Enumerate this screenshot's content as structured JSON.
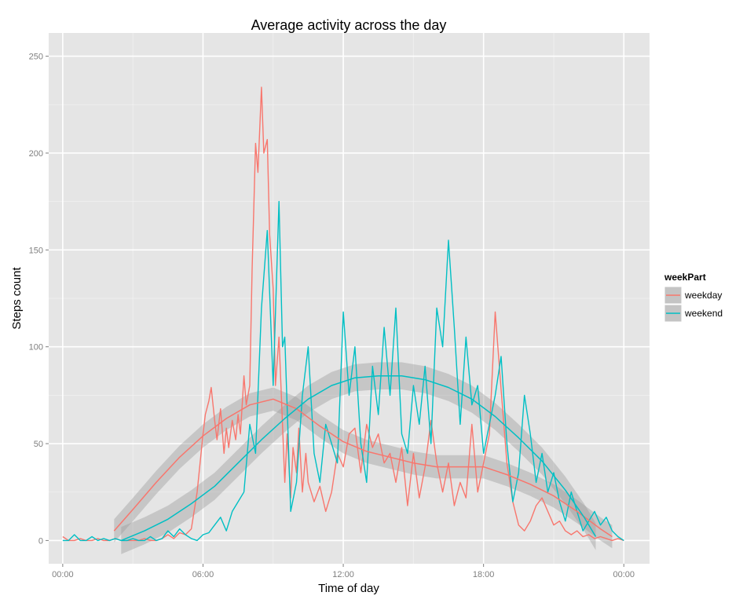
{
  "chart_data": {
    "type": "line",
    "title": "Average activity across the day",
    "xlabel": "Time of day",
    "ylabel": "Steps count",
    "x_unit": "hours",
    "xlim": [
      -0.6,
      25.1
    ],
    "ylim": [
      -12,
      262
    ],
    "x_ticks": [
      {
        "value": 0,
        "label": "00:00"
      },
      {
        "value": 6,
        "label": "06:00"
      },
      {
        "value": 12,
        "label": "12:00"
      },
      {
        "value": 18,
        "label": "18:00"
      },
      {
        "value": 24,
        "label": "00:00"
      }
    ],
    "y_ticks": [
      0,
      50,
      100,
      150,
      200,
      250
    ],
    "grid": true,
    "legend": {
      "title": "weekPart",
      "placement": "right"
    },
    "series": [
      {
        "name": "weekday",
        "color": "#F8766D",
        "raw": [
          [
            0,
            2
          ],
          [
            0.25,
            0
          ],
          [
            0.5,
            0
          ],
          [
            0.75,
            1
          ],
          [
            1,
            0
          ],
          [
            1.25,
            0
          ],
          [
            1.5,
            1
          ],
          [
            1.75,
            0
          ],
          [
            2,
            0
          ],
          [
            2.25,
            1
          ],
          [
            2.5,
            0
          ],
          [
            2.75,
            0
          ],
          [
            3,
            0
          ],
          [
            3.25,
            0
          ],
          [
            3.5,
            1
          ],
          [
            3.75,
            0
          ],
          [
            4,
            0
          ],
          [
            4.25,
            1
          ],
          [
            4.5,
            3
          ],
          [
            4.75,
            1
          ],
          [
            5,
            4
          ],
          [
            5.25,
            3
          ],
          [
            5.5,
            6
          ],
          [
            5.75,
            25
          ],
          [
            6,
            55
          ],
          [
            6.1,
            65
          ],
          [
            6.25,
            72
          ],
          [
            6.35,
            79
          ],
          [
            6.5,
            62
          ],
          [
            6.6,
            52
          ],
          [
            6.75,
            68
          ],
          [
            6.9,
            45
          ],
          [
            7,
            58
          ],
          [
            7.1,
            48
          ],
          [
            7.25,
            62
          ],
          [
            7.4,
            52
          ],
          [
            7.5,
            65
          ],
          [
            7.6,
            55
          ],
          [
            7.75,
            85
          ],
          [
            7.85,
            70
          ],
          [
            8,
            80
          ],
          [
            8.1,
            140
          ],
          [
            8.25,
            205
          ],
          [
            8.35,
            190
          ],
          [
            8.5,
            234
          ],
          [
            8.6,
            200
          ],
          [
            8.75,
            207
          ],
          [
            8.85,
            158
          ],
          [
            9,
            130
          ],
          [
            9.1,
            80
          ],
          [
            9.25,
            105
          ],
          [
            9.35,
            75
          ],
          [
            9.5,
            30
          ],
          [
            9.6,
            55
          ],
          [
            9.75,
            22
          ],
          [
            9.85,
            48
          ],
          [
            10,
            35
          ],
          [
            10.1,
            58
          ],
          [
            10.25,
            25
          ],
          [
            10.4,
            45
          ],
          [
            10.5,
            30
          ],
          [
            10.75,
            20
          ],
          [
            11,
            28
          ],
          [
            11.25,
            15
          ],
          [
            11.5,
            25
          ],
          [
            11.75,
            45
          ],
          [
            12,
            38
          ],
          [
            12.25,
            55
          ],
          [
            12.5,
            58
          ],
          [
            12.75,
            35
          ],
          [
            13,
            60
          ],
          [
            13.25,
            48
          ],
          [
            13.5,
            55
          ],
          [
            13.75,
            40
          ],
          [
            14,
            45
          ],
          [
            14.25,
            30
          ],
          [
            14.5,
            48
          ],
          [
            14.75,
            18
          ],
          [
            15,
            45
          ],
          [
            15.25,
            22
          ],
          [
            15.5,
            38
          ],
          [
            15.75,
            62
          ],
          [
            16,
            40
          ],
          [
            16.25,
            25
          ],
          [
            16.5,
            40
          ],
          [
            16.75,
            18
          ],
          [
            17,
            30
          ],
          [
            17.25,
            22
          ],
          [
            17.5,
            60
          ],
          [
            17.75,
            25
          ],
          [
            18,
            40
          ],
          [
            18.25,
            55
          ],
          [
            18.5,
            118
          ],
          [
            18.75,
            78
          ],
          [
            19,
            40
          ],
          [
            19.25,
            20
          ],
          [
            19.5,
            8
          ],
          [
            19.75,
            5
          ],
          [
            20,
            10
          ],
          [
            20.25,
            18
          ],
          [
            20.5,
            22
          ],
          [
            20.75,
            15
          ],
          [
            21,
            8
          ],
          [
            21.25,
            10
          ],
          [
            21.5,
            5
          ],
          [
            21.75,
            3
          ],
          [
            22,
            5
          ],
          [
            22.25,
            2
          ],
          [
            22.5,
            3
          ],
          [
            22.75,
            1
          ],
          [
            23,
            2
          ],
          [
            23.25,
            1
          ],
          [
            23.5,
            0
          ],
          [
            23.75,
            1
          ],
          [
            24,
            0
          ]
        ],
        "smooth": [
          [
            2.2,
            5
          ],
          [
            3,
            16
          ],
          [
            4,
            30
          ],
          [
            5,
            43
          ],
          [
            6,
            54
          ],
          [
            7,
            63
          ],
          [
            8,
            70
          ],
          [
            9,
            73
          ],
          [
            10,
            68
          ],
          [
            11,
            59
          ],
          [
            12,
            51
          ],
          [
            13,
            46
          ],
          [
            14,
            43
          ],
          [
            15,
            40
          ],
          [
            16,
            38
          ],
          [
            17,
            38
          ],
          [
            18,
            38
          ],
          [
            19,
            34
          ],
          [
            20,
            29
          ],
          [
            21,
            23
          ],
          [
            22,
            15
          ],
          [
            23,
            6
          ],
          [
            23.5,
            2
          ]
        ],
        "band_halfwidth": 6
      },
      {
        "name": "weekend",
        "color": "#00BFC4",
        "raw": [
          [
            0,
            0
          ],
          [
            0.25,
            0
          ],
          [
            0.5,
            3
          ],
          [
            0.75,
            0
          ],
          [
            1,
            0
          ],
          [
            1.25,
            2
          ],
          [
            1.5,
            0
          ],
          [
            1.75,
            1
          ],
          [
            2,
            0
          ],
          [
            2.25,
            1
          ],
          [
            2.5,
            0
          ],
          [
            2.75,
            0
          ],
          [
            3,
            1
          ],
          [
            3.25,
            0
          ],
          [
            3.5,
            0
          ],
          [
            3.75,
            2
          ],
          [
            4,
            0
          ],
          [
            4.25,
            1
          ],
          [
            4.5,
            5
          ],
          [
            4.75,
            2
          ],
          [
            5,
            6
          ],
          [
            5.25,
            3
          ],
          [
            5.5,
            1
          ],
          [
            5.75,
            0
          ],
          [
            6,
            3
          ],
          [
            6.25,
            4
          ],
          [
            6.5,
            8
          ],
          [
            6.75,
            12
          ],
          [
            7,
            5
          ],
          [
            7.25,
            15
          ],
          [
            7.5,
            20
          ],
          [
            7.75,
            25
          ],
          [
            8,
            60
          ],
          [
            8.25,
            45
          ],
          [
            8.5,
            120
          ],
          [
            8.75,
            160
          ],
          [
            9,
            80
          ],
          [
            9.25,
            175
          ],
          [
            9.4,
            100
          ],
          [
            9.5,
            105
          ],
          [
            9.75,
            15
          ],
          [
            10,
            30
          ],
          [
            10.25,
            75
          ],
          [
            10.5,
            100
          ],
          [
            10.75,
            45
          ],
          [
            11,
            30
          ],
          [
            11.25,
            60
          ],
          [
            11.5,
            50
          ],
          [
            11.75,
            40
          ],
          [
            12,
            118
          ],
          [
            12.25,
            75
          ],
          [
            12.5,
            100
          ],
          [
            12.75,
            50
          ],
          [
            13,
            30
          ],
          [
            13.25,
            90
          ],
          [
            13.5,
            65
          ],
          [
            13.75,
            110
          ],
          [
            14,
            75
          ],
          [
            14.25,
            120
          ],
          [
            14.5,
            55
          ],
          [
            14.75,
            45
          ],
          [
            15,
            80
          ],
          [
            15.25,
            60
          ],
          [
            15.5,
            90
          ],
          [
            15.75,
            50
          ],
          [
            16,
            120
          ],
          [
            16.25,
            100
          ],
          [
            16.5,
            155
          ],
          [
            16.75,
            110
          ],
          [
            17,
            60
          ],
          [
            17.25,
            105
          ],
          [
            17.5,
            70
          ],
          [
            17.75,
            80
          ],
          [
            18,
            45
          ],
          [
            18.25,
            60
          ],
          [
            18.5,
            75
          ],
          [
            18.75,
            95
          ],
          [
            19,
            50
          ],
          [
            19.25,
            20
          ],
          [
            19.5,
            35
          ],
          [
            19.75,
            75
          ],
          [
            20,
            55
          ],
          [
            20.25,
            30
          ],
          [
            20.5,
            45
          ],
          [
            20.75,
            25
          ],
          [
            21,
            35
          ],
          [
            21.25,
            20
          ],
          [
            21.5,
            10
          ],
          [
            21.75,
            25
          ],
          [
            22,
            15
          ],
          [
            22.25,
            5
          ],
          [
            22.5,
            10
          ],
          [
            22.75,
            15
          ],
          [
            23,
            8
          ],
          [
            23.25,
            12
          ],
          [
            23.5,
            5
          ],
          [
            23.75,
            2
          ],
          [
            24,
            0
          ]
        ],
        "smooth": [
          [
            2.5,
            0
          ],
          [
            3.5,
            5
          ],
          [
            4.5,
            11
          ],
          [
            5.5,
            19
          ],
          [
            6.5,
            28
          ],
          [
            7.5,
            40
          ],
          [
            8.5,
            52
          ],
          [
            9.5,
            63
          ],
          [
            10.5,
            73
          ],
          [
            11.5,
            80
          ],
          [
            12.5,
            84
          ],
          [
            13.5,
            85
          ],
          [
            14.5,
            85
          ],
          [
            15.5,
            83
          ],
          [
            16.5,
            79
          ],
          [
            17.5,
            73
          ],
          [
            18.5,
            64
          ],
          [
            19.5,
            53
          ],
          [
            20.5,
            41
          ],
          [
            21.5,
            26
          ],
          [
            22.3,
            12
          ],
          [
            22.8,
            2
          ]
        ],
        "band_halfwidth": 7
      }
    ]
  }
}
